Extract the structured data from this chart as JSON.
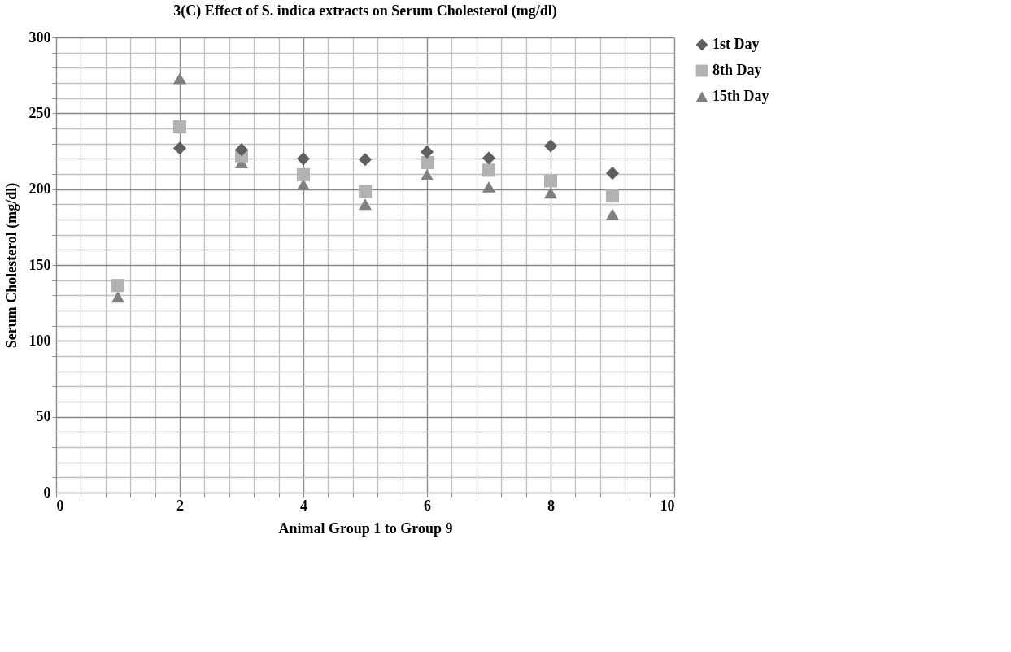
{
  "chart_data": {
    "type": "scatter",
    "title": "3(C)  Effect of S. indica extracts on Serum Cholesterol (mg/dl)",
    "xlabel": "Animal Group 1 to Group 9",
    "ylabel": "Serum Cholesterol (mg/dl)",
    "x": [
      1,
      2,
      3,
      4,
      5,
      6,
      7,
      8,
      9
    ],
    "series": [
      {
        "name": "1st Day",
        "color": "#5f5f5f",
        "marker": "diamond",
        "values": [
          null,
          227,
          226,
          220,
          219.5,
          224.5,
          220.5,
          228.5,
          210.5
        ]
      },
      {
        "name": "8th Day",
        "color": "#b2b2b2",
        "marker": "square",
        "values": [
          136.5,
          241,
          222,
          209.5,
          198.5,
          217.5,
          212.5,
          205.5,
          195.5
        ]
      },
      {
        "name": "15th Day",
        "color": "#808080",
        "marker": "triangle",
        "values": [
          129,
          273,
          217.5,
          203,
          190,
          209.5,
          201.5,
          197.5,
          183.5
        ]
      }
    ],
    "xlim": [
      0,
      10
    ],
    "xticks": [
      0,
      2,
      4,
      6,
      8,
      10
    ],
    "ylim": [
      0,
      300
    ],
    "yticks": [
      0,
      50,
      100,
      150,
      200,
      250,
      300
    ],
    "grid": true,
    "legend": "right"
  }
}
